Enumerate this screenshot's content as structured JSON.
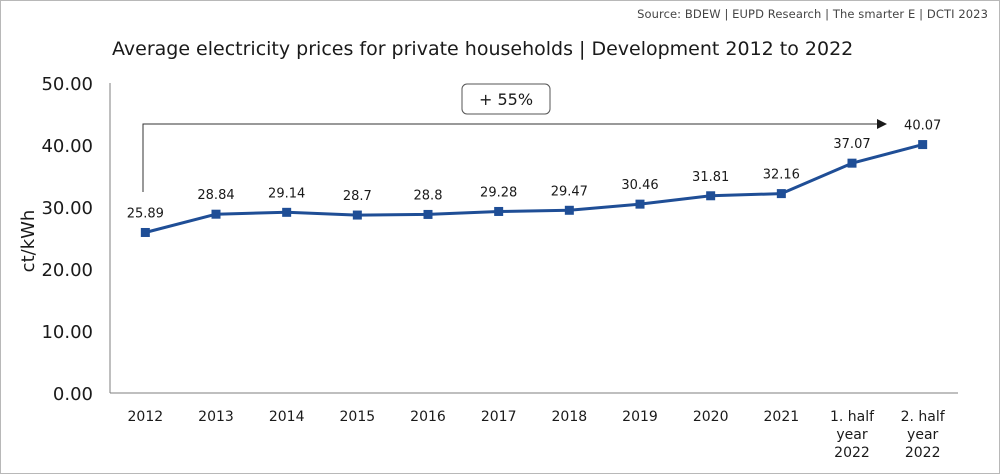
{
  "source": "Source: BDEW | EUPD Research | The smarter E | DCTI 2023",
  "colors": {
    "series": "#1f4e96",
    "axis": "#7f7f7f",
    "text": "#1a1a1a"
  },
  "chart_data": {
    "type": "line",
    "title": "Average electricity prices for private households | Development 2012 to 2022",
    "ylabel": "ct/kWh",
    "xlabel": "",
    "ylim": [
      0,
      50
    ],
    "yticks": [
      "0.00",
      "10.00",
      "20.00",
      "30.00",
      "40.00",
      "50.00"
    ],
    "categories": [
      [
        "2012"
      ],
      [
        "2013"
      ],
      [
        "2014"
      ],
      [
        "2015"
      ],
      [
        "2016"
      ],
      [
        "2017"
      ],
      [
        "2018"
      ],
      [
        "2019"
      ],
      [
        "2020"
      ],
      [
        "2021"
      ],
      [
        "1. half",
        "year",
        "2022"
      ],
      [
        "2. half",
        "year",
        "2022"
      ]
    ],
    "values": [
      25.89,
      28.84,
      29.14,
      28.7,
      28.8,
      29.28,
      29.47,
      30.46,
      31.81,
      32.16,
      37.07,
      40.07
    ],
    "data_labels": [
      "25.89",
      "28.84",
      "29.14",
      "28.7",
      "28.8",
      "29.28",
      "29.47",
      "30.46",
      "31.81",
      "32.16",
      "37.07",
      "40.07"
    ],
    "annotation": "+ 55%",
    "grid": false,
    "legend": "none"
  }
}
